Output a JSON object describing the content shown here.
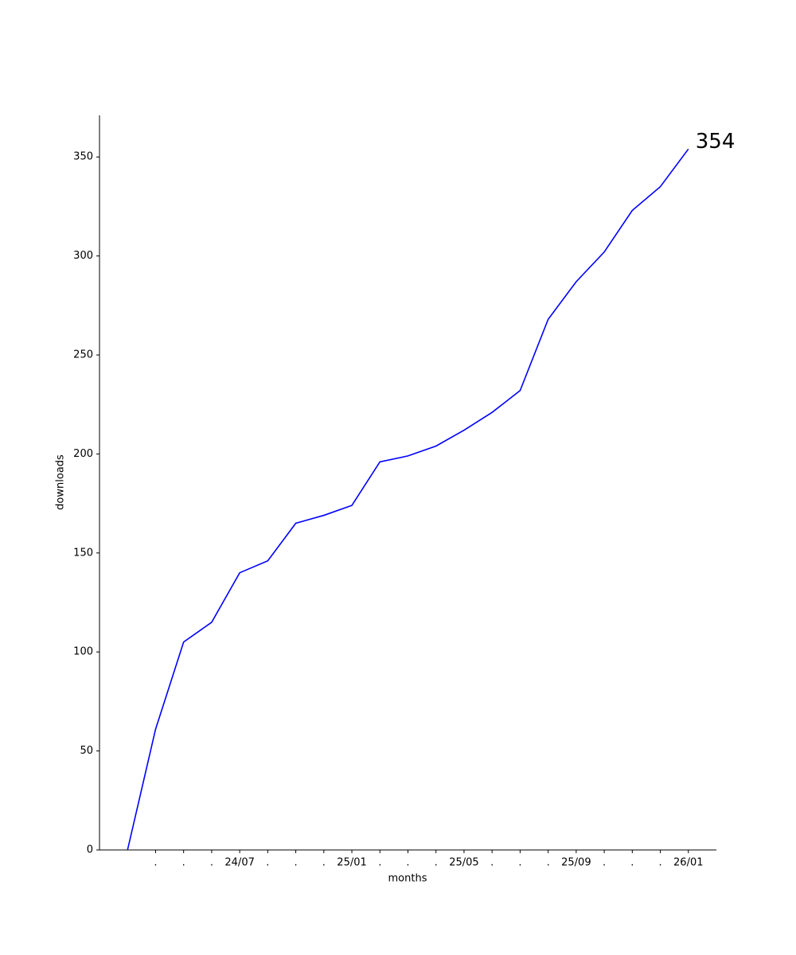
{
  "chart_data": {
    "type": "line",
    "x_label": "months",
    "y_label": "downloads",
    "categories": [
      null,
      ".",
      ".",
      ".",
      "24/07",
      ".",
      ".",
      ".",
      "25/01",
      ".",
      ".",
      ".",
      "25/05",
      ".",
      ".",
      ".",
      "25/09",
      ".",
      ".",
      ".",
      "26/01"
    ],
    "series": [
      {
        "name": "downloads",
        "color": "#0000ff",
        "values": [
          0,
          61,
          105,
          115,
          140,
          146,
          165,
          169,
          174,
          196,
          199,
          204,
          212,
          221,
          232,
          268,
          287,
          302,
          323,
          335,
          354
        ]
      }
    ],
    "ylim": [
      0,
      371
    ],
    "yticks": [
      0,
      50,
      100,
      150,
      200,
      250,
      300,
      350
    ],
    "end_label": true,
    "grid": false
  }
}
